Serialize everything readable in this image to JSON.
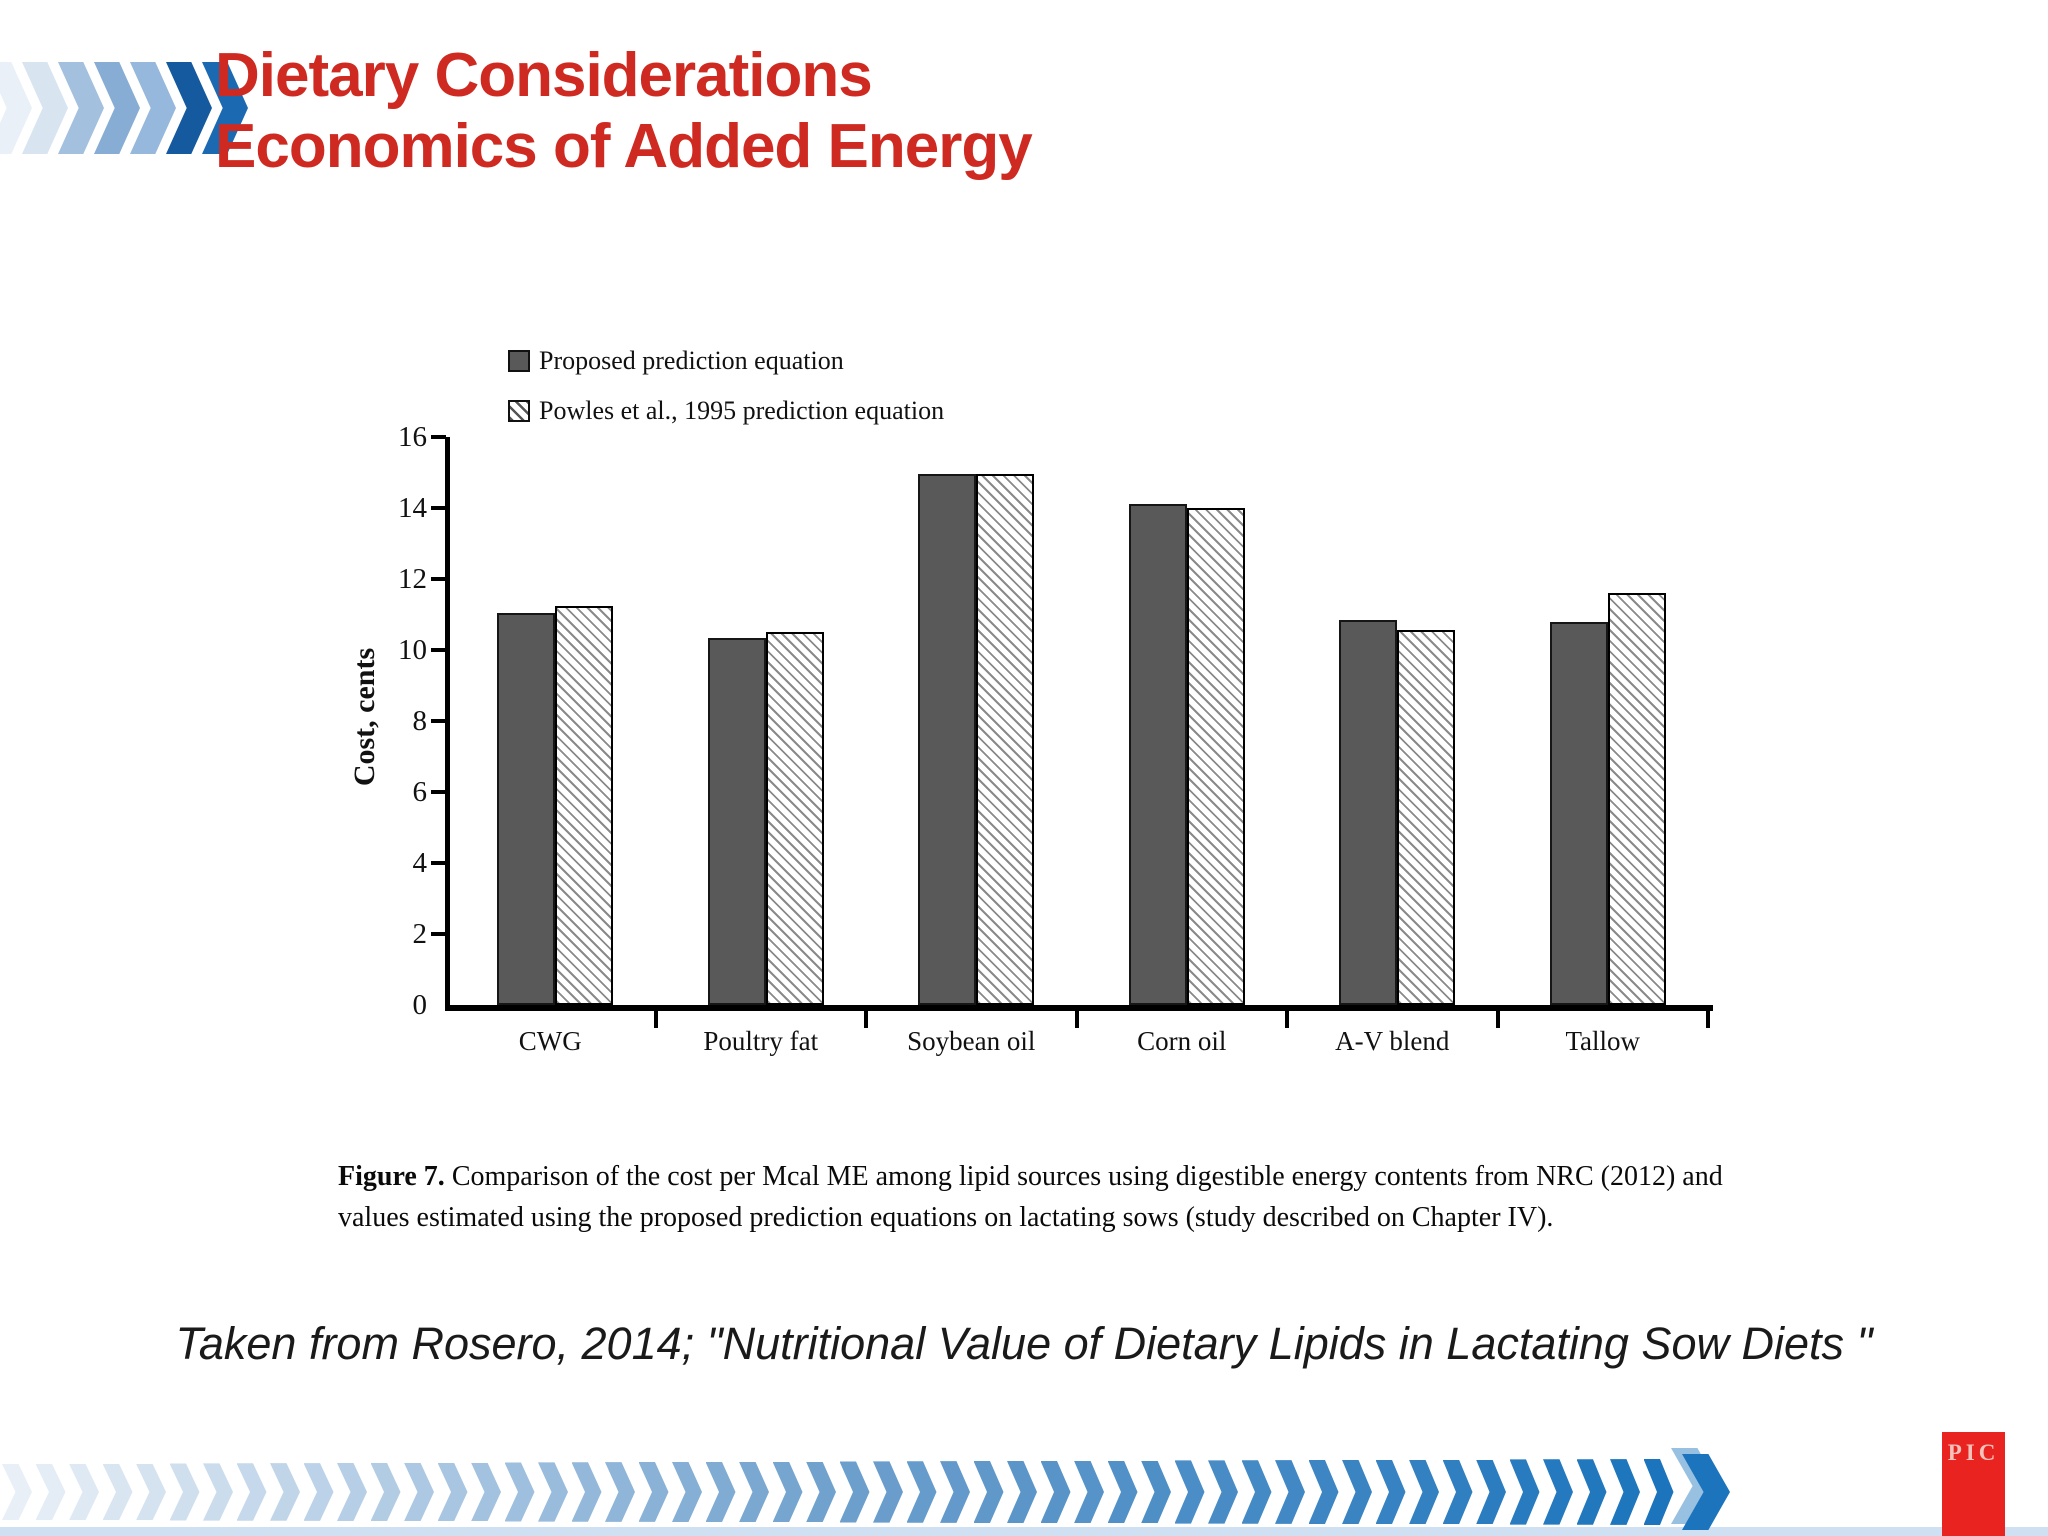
{
  "slide": {
    "title_line1": "Dietary Considerations",
    "title_line2": "Economics of Added Energy",
    "attribution": "Taken from Rosero, 2014; \"Nutritional Value of Dietary Lipids in Lactating Sow Diets \"",
    "logo_text": "PIC"
  },
  "figure_caption": {
    "label": "Figure 7.",
    "text": " Comparison of the cost per Mcal ME among lipid sources using digestible energy contents from NRC (2012) and values estimated using the proposed prediction equations on lactating sows (study described on Chapter IV)."
  },
  "chart_data": {
    "type": "bar",
    "categories": [
      "CWG",
      "Poultry fat",
      "Soybean oil",
      "Corn oil",
      "A-V blend",
      "Tallow"
    ],
    "series": [
      {
        "name": "Proposed prediction equation",
        "style": "solid",
        "values": [
          11.05,
          10.35,
          14.95,
          14.1,
          10.85,
          10.8
        ]
      },
      {
        "name": "Powles et al., 1995 prediction equation",
        "style": "hatched",
        "values": [
          11.25,
          10.5,
          14.95,
          14.0,
          10.55,
          11.6
        ]
      }
    ],
    "title": "",
    "xlabel": "",
    "ylabel": "Cost, cents",
    "ylim": [
      0,
      16
    ],
    "ytick_step": 2,
    "grid": false,
    "legend_position": "top-left"
  },
  "colors": {
    "title_red": "#cf2a21",
    "bar_dark": "#595959",
    "hatch_line": "#8a8a8a",
    "axis_black": "#000000",
    "top_chevrons": [
      "#eaf0f8",
      "#d9e4f1",
      "#a3c0de",
      "#87add4",
      "#96b8dc",
      "#15599f",
      "#1b6ab1"
    ],
    "bottom_chevron_start": "#e9eff7",
    "bottom_chevron_mid": "#6fa0cd",
    "bottom_chevron_end": "#1b74bc",
    "bottom_strip": "#cfe0f2",
    "pic_red": "#e9231f",
    "pic_text": "#f4c1bb"
  }
}
